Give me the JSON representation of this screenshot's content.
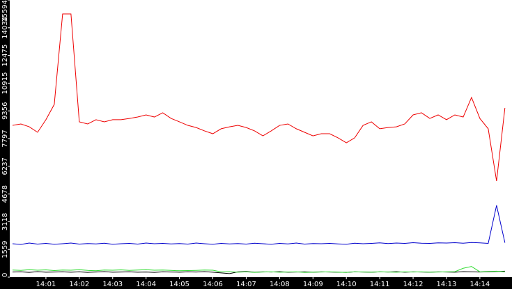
{
  "chart_data": {
    "type": "line",
    "categories": [
      null,
      null,
      null,
      null,
      "14:01",
      null,
      null,
      null,
      "14:02",
      null,
      null,
      null,
      "14:03",
      null,
      null,
      null,
      "14:04",
      null,
      null,
      null,
      "14:05",
      null,
      null,
      null,
      "14:06",
      null,
      null,
      null,
      "14:07",
      null,
      null,
      null,
      "14:08",
      null,
      null,
      null,
      "14:09",
      null,
      null,
      null,
      "14:10",
      null,
      null,
      null,
      "14:11",
      null,
      null,
      null,
      "14:12",
      null,
      null,
      null,
      "14:13",
      null,
      null,
      null,
      "14:14",
      null,
      null,
      null
    ],
    "series": [
      {
        "color": "#ee0000",
        "values": [
          8540,
          8620,
          8460,
          8150,
          8860,
          9720,
          14810,
          14810,
          8740,
          8620,
          8860,
          8740,
          8860,
          8860,
          8930,
          9010,
          9130,
          9010,
          9250,
          8930,
          8740,
          8540,
          8420,
          8230,
          8070,
          8350,
          8460,
          8540,
          8420,
          8230,
          7950,
          8230,
          8540,
          8620,
          8350,
          8150,
          7950,
          8070,
          8070,
          7840,
          7560,
          7840,
          8540,
          8740,
          8350,
          8420,
          8460,
          8620,
          9130,
          9250,
          8930,
          9130,
          8860,
          9130,
          9010,
          10110,
          8930,
          8350,
          5410,
          9520
        ]
      },
      {
        "color": "#0000cc",
        "values": [
          1880,
          1840,
          1920,
          1860,
          1900,
          1850,
          1880,
          1920,
          1860,
          1890,
          1870,
          1910,
          1850,
          1880,
          1900,
          1860,
          1920,
          1880,
          1900,
          1870,
          1890,
          1860,
          1920,
          1880,
          1850,
          1900,
          1870,
          1890,
          1860,
          1910,
          1880,
          1850,
          1900,
          1870,
          1920,
          1860,
          1890,
          1880,
          1900,
          1870,
          1850,
          1910,
          1880,
          1900,
          1930,
          1890,
          1920,
          1900,
          1940,
          1910,
          1900,
          1930,
          1920,
          1940,
          1910,
          1950,
          1930,
          1900,
          4040,
          1940
        ]
      },
      {
        "color": "#33dd33",
        "values": [
          400,
          380,
          420,
          390,
          410,
          370,
          400,
          390,
          420,
          380,
          360,
          400,
          390,
          410,
          380,
          400,
          420,
          390,
          400,
          380,
          360,
          370,
          380,
          400,
          390,
          300,
          310,
          280,
          300,
          270,
          290,
          300,
          280,
          290,
          300,
          270,
          280,
          290,
          300,
          280,
          270,
          300,
          290,
          280,
          300,
          290,
          280,
          300,
          290,
          300,
          280,
          290,
          300,
          310,
          500,
          600,
          300,
          320,
          340,
          300
        ]
      },
      {
        "color": "#000000",
        "values": [
          290,
          300,
          270,
          310,
          280,
          290,
          300,
          280,
          300,
          270,
          290,
          310,
          280,
          290,
          300,
          280,
          290,
          270,
          300,
          290,
          280,
          300,
          290,
          310,
          280,
          240,
          200,
          300,
          320,
          280,
          300,
          290,
          310,
          280,
          290,
          300,
          280,
          300,
          290,
          280,
          270,
          300,
          290,
          280,
          300,
          290,
          310,
          280,
          300,
          290,
          280,
          300,
          290,
          280,
          310,
          300,
          290,
          300,
          320,
          340
        ]
      }
    ],
    "ylim": [
      0,
      15594
    ],
    "yticks": [
      0,
      1559,
      3118,
      4678,
      6237,
      7797,
      9356,
      10915,
      12475,
      14034,
      15594
    ]
  }
}
